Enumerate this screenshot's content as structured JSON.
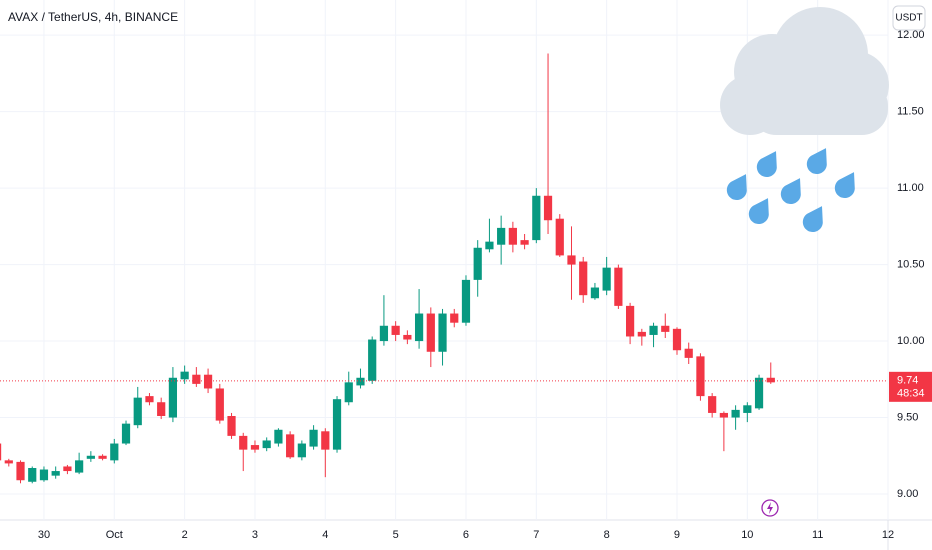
{
  "chart_data": {
    "type": "candlestick",
    "title": "AVAX / TetherUS, 4h, BINANCE",
    "currency": "USDT",
    "x": [
      -4,
      -3,
      -2,
      -1,
      0,
      1,
      2,
      3,
      4,
      5,
      6,
      7,
      8,
      9,
      10,
      11,
      12,
      13,
      14,
      15,
      16,
      17,
      18,
      19,
      20,
      21,
      22,
      23,
      24,
      25,
      26,
      27,
      28,
      29,
      30,
      31,
      32,
      33,
      34,
      35,
      36,
      37,
      38,
      39,
      40,
      41,
      42,
      43,
      44,
      45,
      46,
      47,
      48,
      49,
      50,
      51,
      52,
      53,
      54,
      55,
      56,
      57,
      58,
      59,
      60,
      61,
      62
    ],
    "open": [
      9.33,
      9.22,
      9.21,
      9.08,
      9.09,
      9.12,
      9.18,
      9.14,
      9.23,
      9.25,
      9.22,
      9.33,
      9.45,
      9.64,
      9.6,
      9.5,
      9.75,
      9.78,
      9.78,
      9.69,
      9.51,
      9.38,
      9.32,
      9.3,
      9.33,
      9.39,
      9.24,
      9.31,
      9.41,
      9.29,
      9.6,
      9.71,
      9.74,
      10.0,
      10.1,
      10.04,
      10.0,
      10.18,
      9.93,
      10.18,
      10.12,
      10.4,
      10.6,
      10.63,
      10.74,
      10.66,
      10.66,
      10.95,
      10.8,
      10.56,
      10.52,
      10.28,
      10.33,
      10.48,
      10.23,
      10.06,
      10.04,
      10.1,
      10.08,
      9.95,
      9.9,
      9.64,
      9.53,
      9.5,
      9.53,
      9.56,
      9.76
    ],
    "high": [
      9.37,
      9.23,
      9.22,
      9.18,
      9.18,
      9.18,
      9.19,
      9.27,
      9.28,
      9.26,
      9.36,
      9.48,
      9.7,
      9.66,
      9.63,
      9.83,
      9.84,
      9.83,
      9.82,
      9.72,
      9.53,
      9.4,
      9.35,
      9.37,
      9.43,
      9.41,
      9.35,
      9.45,
      9.43,
      9.64,
      9.8,
      9.82,
      10.03,
      10.3,
      10.13,
      10.07,
      10.34,
      10.22,
      10.21,
      10.21,
      10.43,
      10.66,
      10.8,
      10.82,
      10.78,
      10.7,
      11.0,
      11.88,
      10.83,
      10.75,
      10.55,
      10.38,
      10.55,
      10.5,
      10.25,
      10.08,
      10.12,
      10.18,
      10.09,
      9.99,
      9.92,
      9.66,
      9.54,
      9.58,
      9.6,
      9.78,
      9.86
    ],
    "low": [
      9.2,
      9.18,
      9.07,
      9.07,
      9.08,
      9.1,
      9.13,
      9.13,
      9.21,
      9.22,
      9.2,
      9.32,
      9.43,
      9.58,
      9.49,
      9.47,
      9.72,
      9.7,
      9.66,
      9.46,
      9.36,
      9.15,
      9.27,
      9.28,
      9.31,
      9.23,
      9.22,
      9.29,
      9.11,
      9.27,
      9.58,
      9.69,
      9.72,
      9.97,
      10.0,
      9.98,
      9.95,
      9.83,
      9.84,
      10.09,
      10.1,
      10.29,
      10.58,
      10.5,
      10.58,
      10.6,
      10.64,
      10.7,
      10.55,
      10.27,
      10.25,
      10.27,
      10.3,
      10.21,
      9.98,
      9.97,
      9.96,
      10.02,
      9.91,
      9.85,
      9.61,
      9.5,
      9.28,
      9.42,
      9.47,
      9.55,
      9.72
    ],
    "close": [
      9.22,
      9.2,
      9.09,
      9.17,
      9.16,
      9.15,
      9.15,
      9.22,
      9.25,
      9.23,
      9.33,
      9.46,
      9.63,
      9.6,
      9.51,
      9.76,
      9.8,
      9.72,
      9.69,
      9.48,
      9.38,
      9.29,
      9.29,
      9.35,
      9.42,
      9.24,
      9.33,
      9.42,
      9.29,
      9.62,
      9.73,
      9.76,
      10.01,
      10.1,
      10.04,
      10.01,
      10.18,
      9.93,
      10.18,
      10.12,
      10.4,
      10.61,
      10.65,
      10.74,
      10.63,
      10.63,
      10.95,
      10.79,
      10.56,
      10.5,
      10.3,
      10.35,
      10.48,
      10.23,
      10.03,
      10.03,
      10.1,
      10.06,
      9.94,
      9.89,
      9.64,
      9.53,
      9.5,
      9.55,
      9.58,
      9.76,
      9.73
    ],
    "up_color": "#089981",
    "down_color": "#f23645",
    "last_price": 9.74,
    "countdown": "48:34",
    "xlim": [
      -3.75,
      72.0
    ],
    "xticks": [
      {
        "value": 0,
        "label": "30"
      },
      {
        "value": 6,
        "label": "Oct"
      },
      {
        "value": 12,
        "label": "2"
      },
      {
        "value": 18,
        "label": "3"
      },
      {
        "value": 24,
        "label": "4"
      },
      {
        "value": 30,
        "label": "5"
      },
      {
        "value": 36,
        "label": "6"
      },
      {
        "value": 42,
        "label": "7"
      },
      {
        "value": 48,
        "label": "8"
      },
      {
        "value": 54,
        "label": "9"
      },
      {
        "value": 60,
        "label": "10"
      },
      {
        "value": 66,
        "label": "11"
      },
      {
        "value": 72,
        "label": "12"
      }
    ],
    "ylim": [
      8.83,
      12.23
    ],
    "yticks": [
      {
        "value": 9,
        "label": "9.00"
      },
      {
        "value": 9.5,
        "label": "9.50"
      },
      {
        "value": 10,
        "label": "10.00"
      },
      {
        "value": 10.5,
        "label": "10.50"
      },
      {
        "value": 11,
        "label": "11.00"
      },
      {
        "value": 11.5,
        "label": "11.50"
      },
      {
        "value": 12,
        "label": "12.00"
      }
    ],
    "grid": true
  }
}
